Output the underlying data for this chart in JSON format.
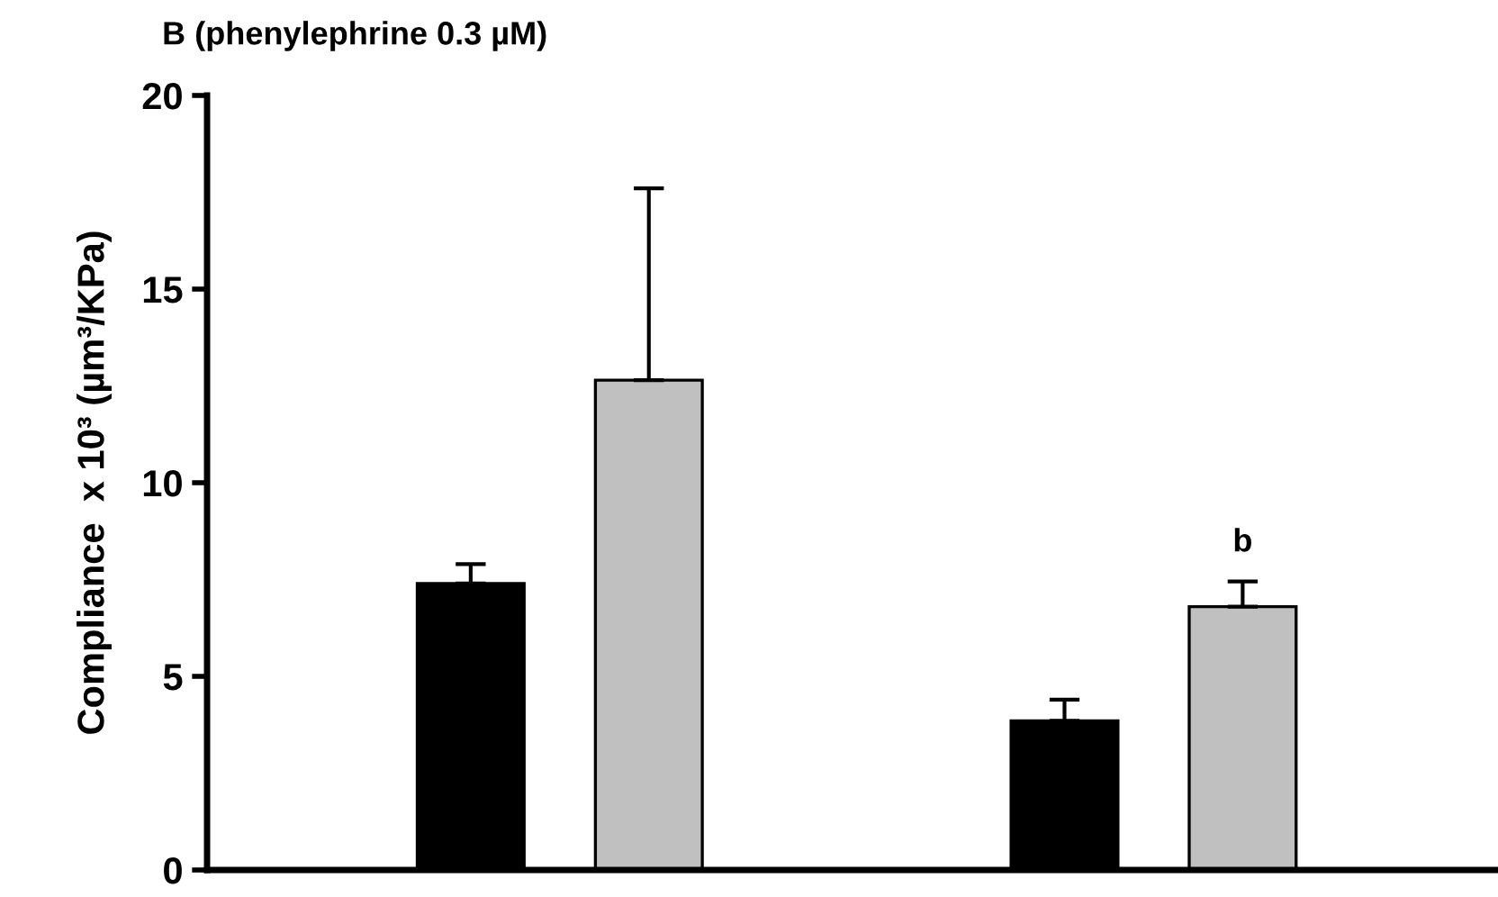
{
  "chart_data": {
    "type": "bar",
    "title": "B (phenylephrine 0.3 µM)",
    "ylabel": "Compliance  x 10³ (µm³/KPa)",
    "categories": [
      null,
      null
    ],
    "series": [
      {
        "color": "#000000",
        "values": [
          7.4,
          3.85
        ],
        "errors": [
          0.5,
          0.55
        ]
      },
      {
        "color": "#c0c0c0",
        "values": [
          12.65,
          6.8
        ],
        "errors": [
          4.95,
          0.65
        ]
      }
    ],
    "ylim": [
      0,
      20
    ],
    "yticks": [
      0,
      5,
      10,
      15,
      20
    ],
    "grid": false,
    "legend": false,
    "tick_labels": "y",
    "annotations": [
      "b"
    ]
  }
}
